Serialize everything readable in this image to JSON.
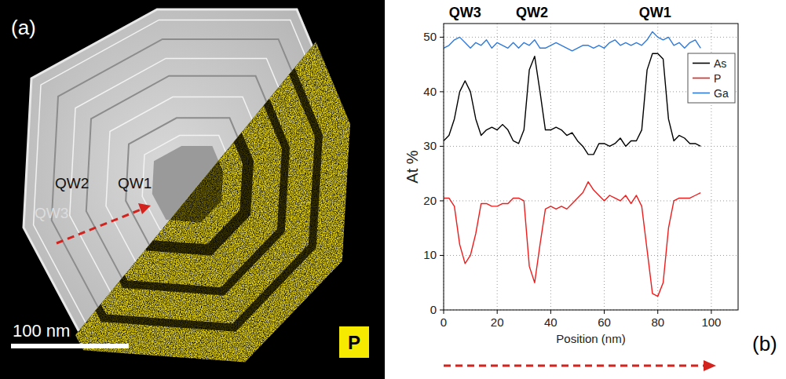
{
  "panel_a": {
    "label": "(a)",
    "qw_labels": [
      "QW2",
      "QW1",
      "QW3"
    ],
    "scale_bar": "100 nm",
    "map_element": "P"
  },
  "chart_data": {
    "type": "line",
    "panel_label": "(b)",
    "x_label": "Position (nm)",
    "y_label": "At %",
    "annotations": [
      {
        "text": "QW3",
        "x": 8
      },
      {
        "text": "QW2",
        "x": 33
      },
      {
        "text": "QW1",
        "x": 79
      }
    ],
    "x": [
      0,
      2,
      4,
      6,
      8,
      10,
      12,
      14,
      16,
      18,
      20,
      22,
      24,
      26,
      28,
      30,
      32,
      34,
      36,
      38,
      40,
      42,
      44,
      46,
      48,
      50,
      52,
      54,
      56,
      58,
      60,
      62,
      64,
      66,
      68,
      70,
      72,
      74,
      76,
      78,
      80,
      82,
      84,
      86,
      88,
      90,
      92,
      94,
      96
    ],
    "series": [
      {
        "name": "As",
        "color": "#000000",
        "values": [
          31,
          32,
          35,
          40,
          42,
          40,
          35,
          32,
          33,
          33.5,
          33,
          34,
          33,
          31,
          30.5,
          33,
          44,
          46.5,
          40,
          33,
          33,
          33.5,
          33,
          32,
          32.5,
          31,
          30,
          28.5,
          28.5,
          30.5,
          30.5,
          30,
          30.5,
          31.5,
          30,
          31,
          31,
          33,
          44,
          47,
          47,
          46,
          35,
          31,
          32,
          31.5,
          30.5,
          30.5,
          30
        ]
      },
      {
        "name": "P",
        "color": "#ee1c1c",
        "values": [
          20.5,
          20.5,
          19,
          12,
          8.5,
          10,
          14,
          19.5,
          19.5,
          19,
          19,
          19.5,
          19.5,
          20.5,
          20.5,
          20,
          8,
          5,
          12,
          18.5,
          19,
          18.5,
          19,
          18.5,
          19.5,
          20.5,
          21.5,
          23.5,
          22,
          21,
          20,
          21,
          20.5,
          20,
          21,
          19.5,
          21,
          19,
          11,
          3,
          2.5,
          5,
          15,
          20,
          20.5,
          20.5,
          20.5,
          21,
          21.5
        ]
      },
      {
        "name": "Ga",
        "color": "#2f7ad8",
        "values": [
          48,
          48.5,
          49.5,
          50,
          49,
          48,
          49,
          48.5,
          49.5,
          48,
          49,
          48.5,
          48,
          49,
          48,
          49,
          48.5,
          49.5,
          48,
          48,
          48.5,
          49,
          48.5,
          48,
          47.5,
          48,
          48.5,
          48.5,
          48,
          48.5,
          48,
          49,
          49.5,
          48.5,
          49,
          48.5,
          49,
          48.5,
          49.5,
          51,
          50,
          49.5,
          50,
          48.5,
          49,
          48,
          49,
          49.5,
          48
        ]
      }
    ],
    "xlim": [
      0,
      110
    ],
    "xticks": [
      0,
      20,
      40,
      60,
      80,
      100
    ],
    "ylim": [
      0,
      52.5
    ],
    "yticks": [
      0,
      10,
      20,
      30,
      40,
      50
    ],
    "grid": true,
    "legend": "right"
  }
}
